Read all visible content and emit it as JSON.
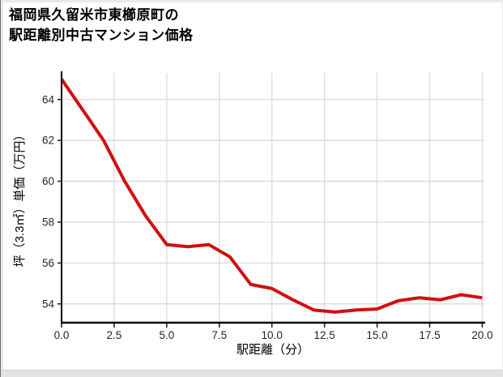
{
  "header": {
    "title_line1": "福岡県久留米市東櫛原町の",
    "title_line2": "駅距離別中古マンション価格"
  },
  "chart_data": {
    "type": "line",
    "title": "福岡県久留米市東櫛原町の駅距離別中古マンション価格",
    "xlabel": "駅距離（分）",
    "ylabel": "坪（3.3㎡）単価（万円）",
    "x": [
      0,
      1,
      2,
      3,
      4,
      5,
      6,
      7,
      8,
      9,
      10,
      11,
      12,
      13,
      14,
      15,
      16,
      17,
      18,
      19,
      20
    ],
    "values": [
      65.0,
      63.5,
      62.0,
      60.0,
      58.3,
      56.9,
      56.8,
      56.9,
      56.3,
      54.95,
      54.75,
      54.2,
      53.7,
      53.6,
      53.7,
      53.75,
      54.15,
      54.3,
      54.2,
      54.45,
      54.3
    ],
    "x_ticks": [
      0,
      2.5,
      5,
      7.5,
      10,
      12.5,
      15,
      17.5,
      20
    ],
    "x_tick_labels": [
      "0.0",
      "2.5",
      "5.0",
      "7.5",
      "10.0",
      "12.5",
      "15.0",
      "17.5",
      "20.0"
    ],
    "y_ticks": [
      54,
      56,
      58,
      60,
      62,
      64
    ],
    "y_tick_labels": [
      "54",
      "56",
      "58",
      "60",
      "62",
      "64"
    ],
    "xlim": [
      0,
      20.1
    ],
    "ylim": [
      53.08,
      65.3
    ],
    "grid": true,
    "legend": null,
    "line_color": "#d20f0f",
    "grid_color": "#dadada",
    "axis_color": "#000000",
    "tick_color": "#262626"
  }
}
